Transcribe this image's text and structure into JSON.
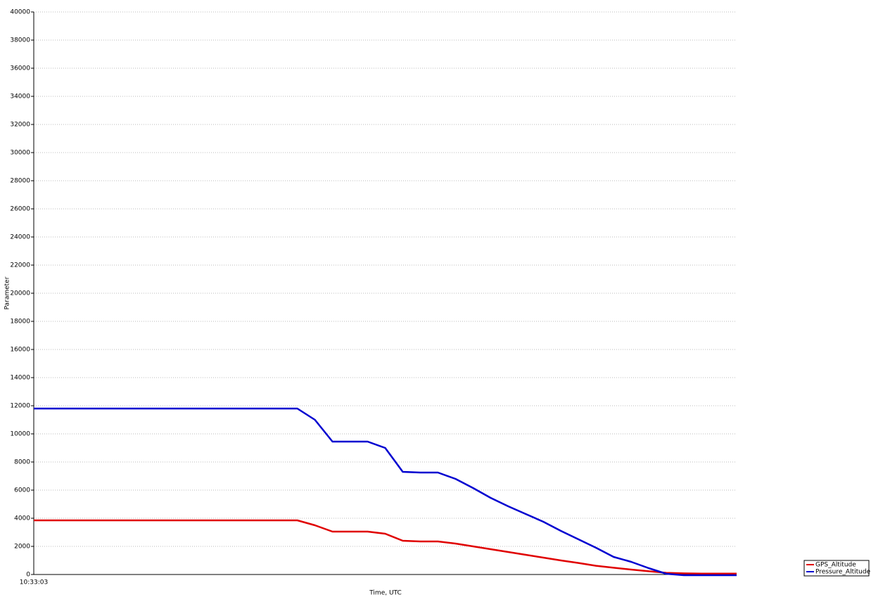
{
  "chart_data": {
    "type": "line",
    "x_label": "Time, UTC",
    "y_label": "Parameter",
    "categories": [
      "10:33:03",
      null,
      null,
      null,
      null,
      null,
      null,
      null,
      null,
      null,
      null,
      null,
      null,
      null,
      null,
      null,
      null,
      null,
      null,
      null,
      null,
      null,
      null,
      null,
      null,
      null,
      null,
      null,
      null,
      null,
      null,
      null,
      null,
      null,
      null,
      null,
      null,
      null,
      null,
      null,
      null
    ],
    "series": [
      {
        "name": "GPS_Altitude",
        "color": "#e00000",
        "values": [
          3850,
          3850,
          3850,
          3850,
          3850,
          3850,
          3850,
          3850,
          3850,
          3850,
          3850,
          3850,
          3850,
          3850,
          3850,
          3850,
          3500,
          3050,
          3050,
          3050,
          2900,
          2400,
          2350,
          2350,
          2200,
          2000,
          1800,
          1600,
          1400,
          1200,
          1000,
          820,
          620,
          480,
          350,
          230,
          120,
          80,
          60,
          60,
          60
        ]
      },
      {
        "name": "Pressure_Altitude",
        "color": "#0000d0",
        "values": [
          11800,
          11800,
          11800,
          11800,
          11800,
          11800,
          11800,
          11800,
          11800,
          11800,
          11800,
          11800,
          11800,
          11800,
          11800,
          11800,
          11000,
          9450,
          9450,
          9450,
          9000,
          7300,
          7250,
          7250,
          6800,
          6150,
          5450,
          4850,
          4300,
          3750,
          3100,
          2500,
          1900,
          1250,
          900,
          450,
          50,
          -50,
          -50,
          -50,
          -50
        ]
      }
    ],
    "ylim": [
      0,
      40000
    ],
    "yticks": [
      0,
      2000,
      4000,
      6000,
      8000,
      10000,
      12000,
      14000,
      16000,
      18000,
      20000,
      22000,
      24000,
      26000,
      28000,
      30000,
      32000,
      34000,
      36000,
      38000,
      40000
    ],
    "grid": true,
    "legend": "bottom-right"
  }
}
